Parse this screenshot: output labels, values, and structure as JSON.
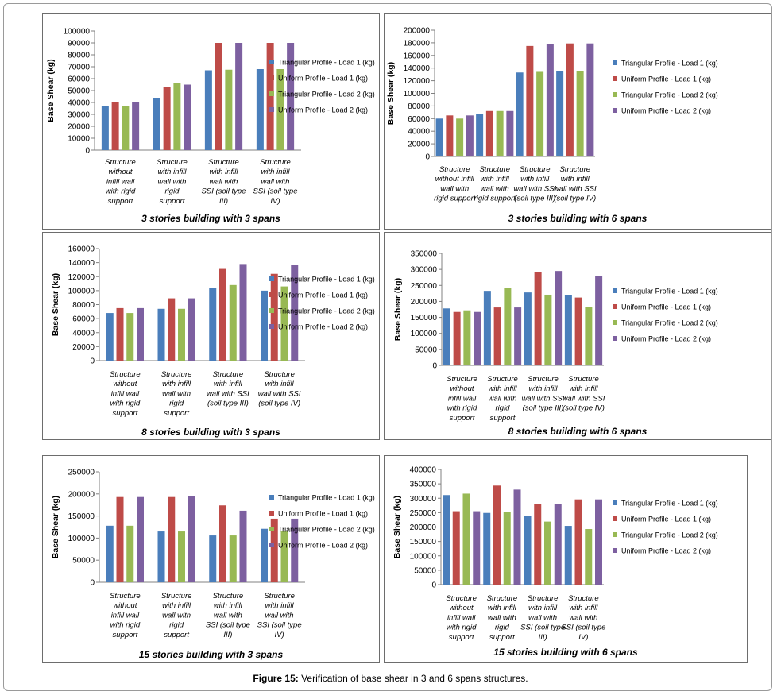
{
  "legend": [
    "Triangular Profile - Load 1 (kg)",
    "Uniform Profile - Load 1 (kg)",
    "Triangular Profile - Load 2 (kg)",
    "Uniform Profile - Load 2 (kg)"
  ],
  "colors": [
    "#4a7ebb",
    "#be4b48",
    "#98b954",
    "#7d60a0"
  ],
  "caption": {
    "label": "Figure 15:",
    "text": " Verification of base shear in 3 and 6 spans structures."
  },
  "chart_data": [
    {
      "type": "bar",
      "title": "3 stories building with 3 spans",
      "ylabel": "Base Shear (kg)",
      "ylim": [
        0,
        100000
      ],
      "yticks": [
        0,
        10000,
        20000,
        30000,
        40000,
        50000,
        60000,
        70000,
        80000,
        90000,
        100000
      ],
      "categories": [
        [
          "Structure",
          "without",
          "infill wall",
          "with rigid",
          "support"
        ],
        [
          "Structure",
          "with infill",
          "wall with",
          "rigid",
          "support"
        ],
        [
          "Structure",
          "with infill",
          "wall with",
          "SSI (soil type",
          "III)"
        ],
        [
          "Structure",
          "with infill",
          "wall with",
          "SSI (soil type",
          "IV)"
        ]
      ],
      "series": [
        {
          "name": "Triangular Profile - Load 1 (kg)",
          "values": [
            37000,
            44000,
            67000,
            68000
          ]
        },
        {
          "name": "Uniform Profile - Load 1 (kg)",
          "values": [
            40000,
            53000,
            90000,
            90000
          ]
        },
        {
          "name": "Triangular Profile - Load 2 (kg)",
          "values": [
            37000,
            56000,
            67500,
            68000
          ]
        },
        {
          "name": "Uniform Profile - Load 2 (kg)",
          "values": [
            40000,
            55000,
            90000,
            90000
          ]
        }
      ]
    },
    {
      "type": "bar",
      "title": "3 stories building with 6 spans",
      "ylabel": "Base Shear (kg)",
      "ylim": [
        0,
        200000
      ],
      "yticks": [
        0,
        20000,
        40000,
        60000,
        80000,
        100000,
        120000,
        140000,
        160000,
        180000,
        200000
      ],
      "categories": [
        [
          "Structure",
          "without infill",
          "wall with",
          "rigid support"
        ],
        [
          "Structure",
          "with infill",
          "wall with",
          "rigid support"
        ],
        [
          "Structure",
          "with infill",
          "wall with SSI",
          "(soil type III)"
        ],
        [
          "Structure",
          "with infill",
          "wall with SSI",
          "(soil type IV)"
        ]
      ],
      "series": [
        {
          "name": "Triangular Profile - Load 1 (kg)",
          "values": [
            60000,
            67000,
            133000,
            135000
          ]
        },
        {
          "name": "Uniform Profile - Load 1 (kg)",
          "values": [
            65000,
            72000,
            175000,
            179000
          ]
        },
        {
          "name": "Triangular Profile - Load 2 (kg)",
          "values": [
            60000,
            72000,
            134000,
            135000
          ]
        },
        {
          "name": "Uniform Profile - Load 2 (kg)",
          "values": [
            65000,
            72000,
            178000,
            179000
          ]
        }
      ]
    },
    {
      "type": "bar",
      "title": "8 stories building with 3 spans",
      "ylabel": "Base Shear (kg)",
      "ylim": [
        0,
        160000
      ],
      "yticks": [
        0,
        20000,
        40000,
        60000,
        80000,
        100000,
        120000,
        140000,
        160000
      ],
      "categories": [
        [
          "Structure",
          "without",
          "infill wall",
          "with rigid",
          "support"
        ],
        [
          "Structure",
          "with infill",
          "wall with",
          "rigid",
          "support"
        ],
        [
          "Structure",
          "with infill",
          "wall with SSI",
          "(soil type III)"
        ],
        [
          "Structure",
          "with infill",
          "wall with SSI",
          "(soil type IV)"
        ]
      ],
      "series": [
        {
          "name": "Triangular Profile - Load 1 (kg)",
          "values": [
            68000,
            74000,
            104000,
            100000
          ]
        },
        {
          "name": "Uniform Profile - Load 1 (kg)",
          "values": [
            75000,
            89000,
            131000,
            124000
          ]
        },
        {
          "name": "Triangular Profile - Load 2 (kg)",
          "values": [
            68000,
            74000,
            108000,
            106000
          ]
        },
        {
          "name": "Uniform Profile - Load 2 (kg)",
          "values": [
            75000,
            89000,
            138000,
            137000
          ]
        }
      ]
    },
    {
      "type": "bar",
      "title": "8 stories building with 6 spans",
      "ylabel": "Base Shear (kg)",
      "ylim": [
        0,
        350000
      ],
      "yticks": [
        0,
        50000,
        100000,
        150000,
        200000,
        250000,
        300000,
        350000
      ],
      "categories": [
        [
          "Structure",
          "without",
          "infill wall",
          "with rigid",
          "support"
        ],
        [
          "Structure",
          "with infill",
          "wall with",
          "rigid",
          "support"
        ],
        [
          "Structure",
          "with infill",
          "wall with SSI",
          "(soil type III)"
        ],
        [
          "Structure",
          "with infill",
          "wall with SSI",
          "(soil type IV)"
        ]
      ],
      "series": [
        {
          "name": "Triangular Profile - Load 1 (kg)",
          "values": [
            178000,
            233000,
            228000,
            219000
          ]
        },
        {
          "name": "Uniform Profile - Load 1 (kg)",
          "values": [
            167000,
            181000,
            291000,
            212000
          ]
        },
        {
          "name": "Triangular Profile - Load 2 (kg)",
          "values": [
            172000,
            241000,
            221000,
            182000
          ]
        },
        {
          "name": "Uniform Profile - Load 2 (kg)",
          "values": [
            167000,
            181000,
            295000,
            279000
          ]
        }
      ]
    },
    {
      "type": "bar",
      "title": "15 stories building with 3 spans",
      "ylabel": "Base Shear (kg)",
      "ylim": [
        0,
        250000
      ],
      "yticks": [
        0,
        50000,
        100000,
        150000,
        200000,
        250000
      ],
      "categories": [
        [
          "Structure",
          "without",
          "infill wall",
          "with rigid",
          "support"
        ],
        [
          "Structure",
          "with infill",
          "wall with",
          "rigid",
          "support"
        ],
        [
          "Structure",
          "with infill",
          "wall with",
          "SSI (soil type",
          "III)"
        ],
        [
          "Structure",
          "with infill",
          "wall with",
          "SSI (soil type",
          "IV)"
        ]
      ],
      "series": [
        {
          "name": "Triangular Profile - Load 1 (kg)",
          "values": [
            128000,
            115000,
            106000,
            121000
          ]
        },
        {
          "name": "Uniform Profile - Load 1 (kg)",
          "values": [
            193000,
            193000,
            174000,
            144000
          ]
        },
        {
          "name": "Triangular Profile - Load 2 (kg)",
          "values": [
            128000,
            115000,
            106000,
            115000
          ]
        },
        {
          "name": "Uniform Profile - Load 2 (kg)",
          "values": [
            193000,
            195000,
            162000,
            144000
          ]
        }
      ]
    },
    {
      "type": "bar",
      "title": "15 stories building with 6 spans",
      "ylabel": "Base Shear (kg)",
      "ylim": [
        0,
        400000
      ],
      "yticks": [
        0,
        50000,
        100000,
        150000,
        200000,
        250000,
        300000,
        350000,
        400000
      ],
      "categories": [
        [
          "Structure",
          "without",
          "infill wall",
          "with rigid",
          "support"
        ],
        [
          "Structure",
          "with infill",
          "wall with",
          "rigid",
          "support"
        ],
        [
          "Structure",
          "with infill",
          "wall with",
          "SSI (soil type",
          "III)"
        ],
        [
          "Structure",
          "with infill",
          "wall with",
          "SSI (soil type",
          "IV)"
        ]
      ],
      "series": [
        {
          "name": "Triangular Profile - Load 1 (kg)",
          "values": [
            311000,
            249000,
            239000,
            204000
          ]
        },
        {
          "name": "Uniform Profile - Load 1 (kg)",
          "values": [
            255000,
            344000,
            281000,
            296000
          ]
        },
        {
          "name": "Triangular Profile - Load 2 (kg)",
          "values": [
            316000,
            253000,
            219000,
            193000
          ]
        },
        {
          "name": "Uniform Profile - Load 2 (kg)",
          "values": [
            255000,
            330000,
            279000,
            296000
          ]
        }
      ]
    }
  ]
}
